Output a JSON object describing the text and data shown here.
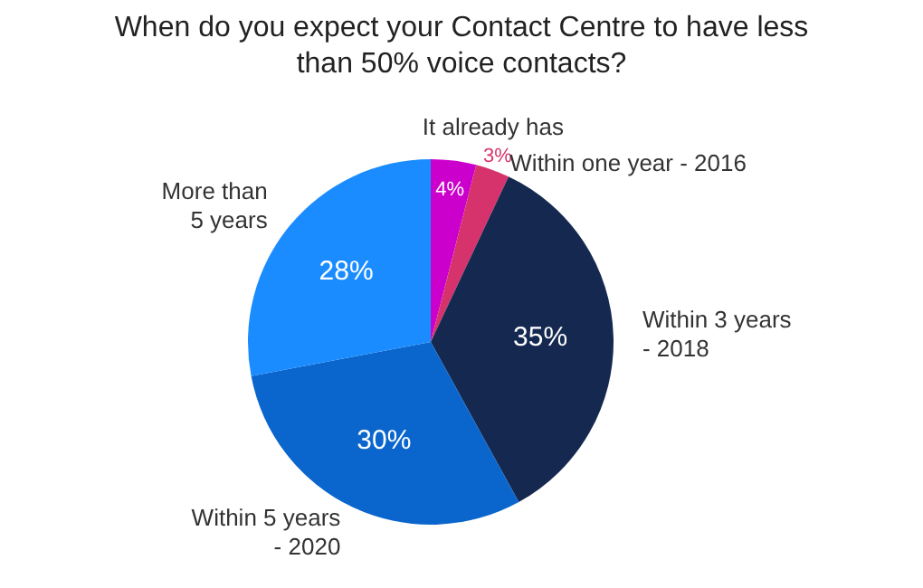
{
  "chart_data": {
    "type": "pie",
    "title": "When do you expect your Contact Centre to have less than 50% voice contacts?",
    "categories": [
      "It already has",
      "Within one year - 2016",
      "Within 3 years\n- 2018",
      "Within 5 years\n- 2020",
      "More than\n5 years"
    ],
    "values": [
      4,
      3,
      35,
      30,
      28
    ],
    "colors": [
      "#cc00cc",
      "#d6336c",
      "#142850",
      "#0a66cc",
      "#1a8cff"
    ],
    "value_labels": [
      "4%",
      "3%",
      "35%",
      "30%",
      "28%"
    ],
    "legend": false
  }
}
